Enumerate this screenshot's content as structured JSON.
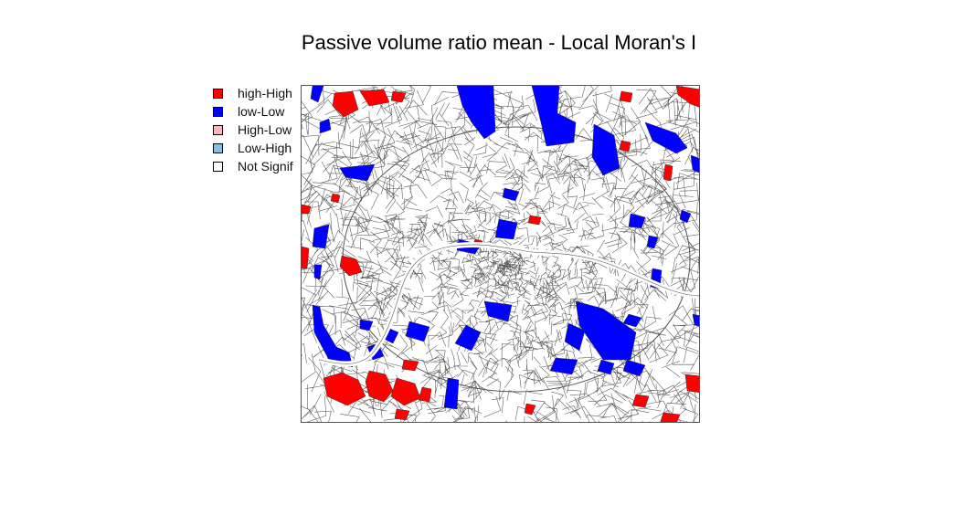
{
  "figure": {
    "title": "Passive volume ratio mean - Local Moran's I"
  },
  "legend": {
    "items": [
      {
        "label": "high-High",
        "color": "#ff0000"
      },
      {
        "label": "low-Low",
        "color": "#0000ff"
      },
      {
        "label": "High-Low",
        "color": "#ffb6c1"
      },
      {
        "label": "Low-High",
        "color": "#87bfe8"
      },
      {
        "label": "Not Signif",
        "color": "#ffffff"
      }
    ]
  },
  "map": {
    "type": "choropleth",
    "classes": [
      "high-High",
      "low-Low",
      "High-Low",
      "Low-High",
      "Not Signif"
    ],
    "boundary_color": "#555555"
  }
}
